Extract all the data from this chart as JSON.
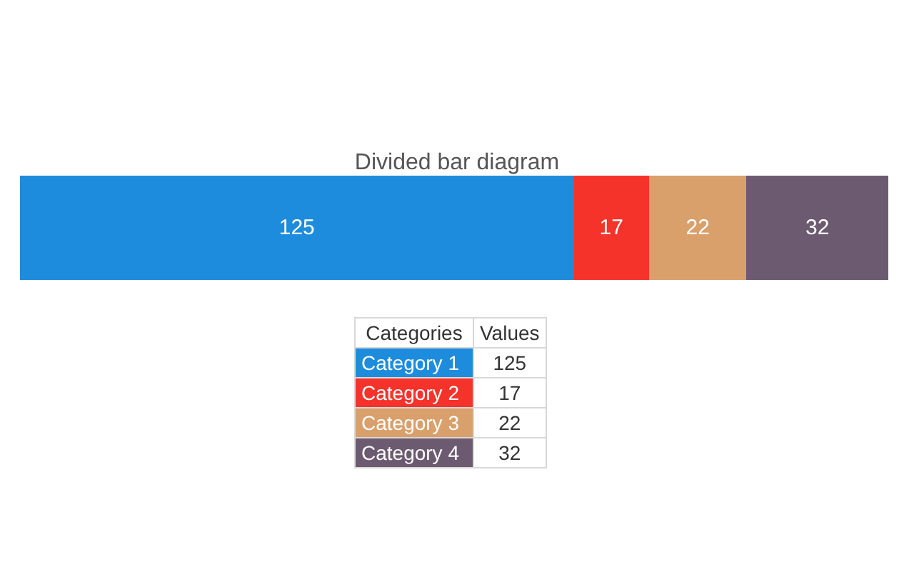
{
  "chart_data": {
    "type": "bar",
    "title": "Divided bar diagram",
    "orientation": "horizontal",
    "stacked": true,
    "data_labels": true,
    "categories": [
      null
    ],
    "xlim": [
      0,
      196
    ],
    "annotations": [
      "Categories",
      "Values"
    ],
    "series": [
      {
        "name": "Category 1",
        "color": "#1e8cdc",
        "values": [
          125
        ],
        "value_labels": [
          "125"
        ]
      },
      {
        "name": "Category 2",
        "color": "#f5332a",
        "values": [
          17
        ],
        "value_labels": [
          "17"
        ]
      },
      {
        "name": "Category 3",
        "color": "#d9a06b",
        "values": [
          22
        ],
        "value_labels": [
          "22"
        ]
      },
      {
        "name": "Category 4",
        "color": "#6c5b70",
        "values": [
          32
        ],
        "value_labels": [
          "32"
        ]
      }
    ]
  }
}
